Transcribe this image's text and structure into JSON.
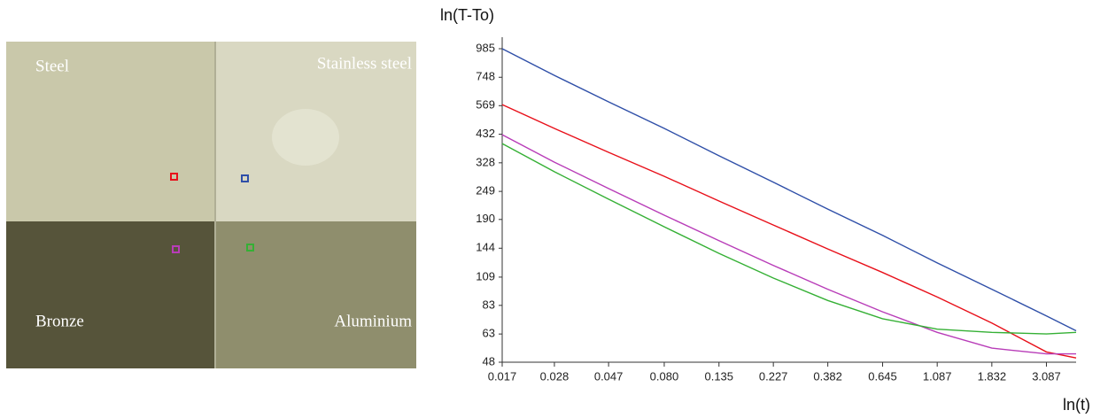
{
  "image": {
    "regions": [
      "Steel",
      "Stainless steel",
      "Bronze",
      "Aluminium"
    ]
  },
  "chart_data": {
    "type": "line",
    "y_label": "ln(T-To)",
    "x_label": "ln(t)",
    "log_x": true,
    "log_y": true,
    "grid": false,
    "x": [
      0.017,
      0.028,
      0.047,
      0.08,
      0.135,
      0.227,
      0.382,
      0.645,
      1.087,
      1.832,
      3.087,
      4.1
    ],
    "series": [
      {
        "color": "#2f4fa8",
        "values": [
          985,
          762,
          590,
          457,
          351,
          272,
          210,
          163,
          125,
          97,
          75,
          65
        ]
      },
      {
        "color": "#e8101a",
        "values": [
          575,
          457,
          363,
          288,
          227,
          180,
          143,
          114,
          90,
          70,
          53,
          50
        ]
      },
      {
        "color": "#b83cb8",
        "values": [
          430,
          330,
          256,
          198,
          155,
          122,
          97,
          78,
          64,
          55,
          52,
          52
        ]
      },
      {
        "color": "#35b035",
        "values": [
          395,
          301,
          231,
          177,
          137,
          108,
          87,
          73,
          66,
          64,
          63,
          64
        ]
      }
    ],
    "xlim": [
      0.017,
      4.1
    ],
    "ylim": [
      48,
      985
    ],
    "xticks": [
      0.017,
      0.028,
      0.047,
      {
        "value": 0.08,
        "label": "0.080"
      },
      0.135,
      0.227,
      0.382,
      0.645,
      1.087,
      1.832,
      3.087
    ],
    "yticks": [
      985,
      748,
      569,
      432,
      328,
      249,
      190,
      144,
      109,
      83,
      63,
      48
    ]
  }
}
